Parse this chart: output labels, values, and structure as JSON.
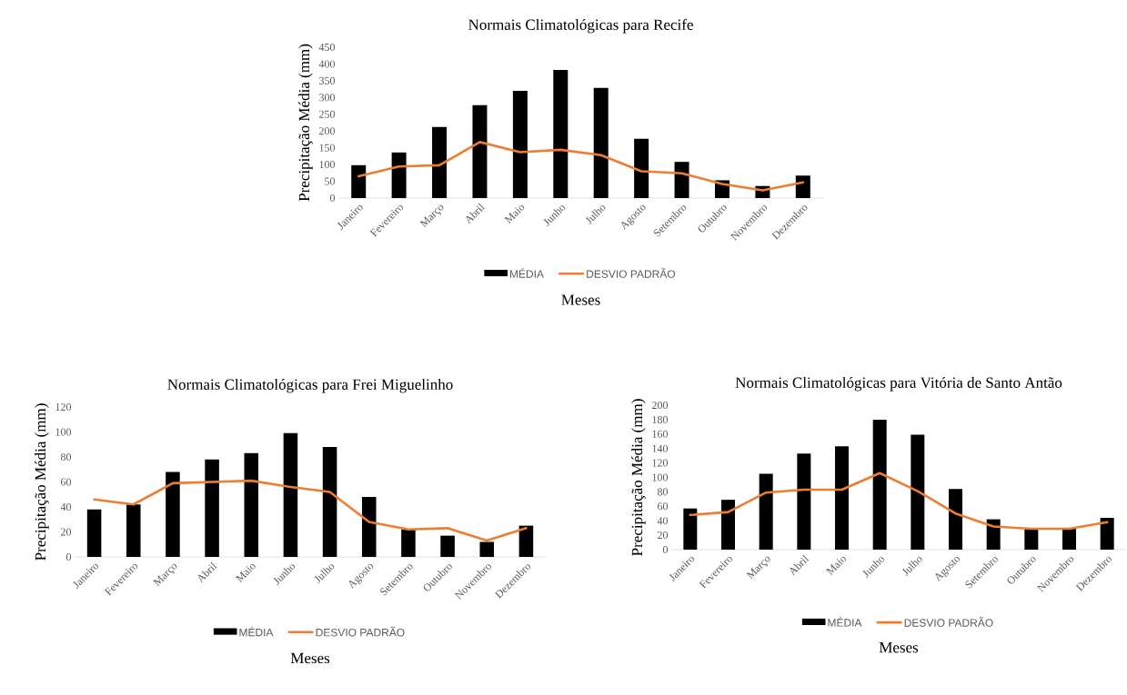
{
  "chart_data": [
    {
      "type": "bar",
      "title": "Normais Climatológicas  para Recife",
      "xlabel": "Meses",
      "ylabel": "Precipitação Média (mm)",
      "categories": [
        "Janeiro",
        "Fevereiro",
        "Março",
        "Abril",
        "Maio",
        "Junho",
        "Julho",
        "Agosto",
        "Setembro",
        "Outubro",
        "Novembro",
        "Dezembro"
      ],
      "series": [
        {
          "name": "MÉDIA",
          "color": "#000000",
          "values": [
            98,
            136,
            212,
            277,
            320,
            382,
            329,
            177,
            108,
            53,
            36,
            67
          ]
        },
        {
          "name": "DESVIO PADRÃO",
          "type": "line",
          "color": "#ed7d31",
          "values": [
            65,
            94,
            98,
            167,
            137,
            144,
            128,
            80,
            74,
            42,
            23,
            47
          ]
        }
      ],
      "ylim": [
        0,
        450
      ],
      "yticks": [
        0,
        50,
        100,
        150,
        200,
        250,
        300,
        350,
        400,
        450
      ],
      "legend": "bottom"
    },
    {
      "type": "bar",
      "title": "Normais Climatológicas  para Frei Miguelinho",
      "xlabel": "Meses",
      "ylabel": "Precipitação Média (mm)",
      "categories": [
        "Janeiro",
        "Fevereiro",
        "Março",
        "Abril",
        "Maio",
        "Junho",
        "Julho",
        "Agosto",
        "Setembro",
        "Outubro",
        "Novembro",
        "Dezembro"
      ],
      "series": [
        {
          "name": "MÉDIA",
          "color": "#000000",
          "values": [
            38,
            42,
            68,
            78,
            83,
            99,
            88,
            48,
            22,
            17,
            12,
            25
          ]
        },
        {
          "name": "DESVIO PADRÃO",
          "type": "line",
          "color": "#ed7d31",
          "values": [
            46,
            42,
            59,
            60,
            61,
            56,
            52,
            28,
            22,
            23,
            13,
            23
          ]
        }
      ],
      "ylim": [
        0,
        120
      ],
      "yticks": [
        0,
        20,
        40,
        60,
        80,
        100,
        120
      ],
      "legend": "bottom"
    },
    {
      "type": "bar",
      "title": "Normais Climatológicas  para Vitória de Santo Antão",
      "xlabel": "Meses",
      "ylabel": "Precipitação Média (mm)",
      "categories": [
        "Janeiro",
        "Fevereiro",
        "Março",
        "Abril",
        "Maio",
        "Junho",
        "Julho",
        "Agosto",
        "Setembro",
        "Outubro",
        "Novembro",
        "Dezembro"
      ],
      "series": [
        {
          "name": "MÉDIA",
          "color": "#000000",
          "values": [
            57,
            69,
            105,
            133,
            143,
            180,
            159,
            84,
            42,
            30,
            30,
            44
          ]
        },
        {
          "name": "DESVIO PADRÃO",
          "type": "line",
          "color": "#ed7d31",
          "values": [
            48,
            52,
            79,
            83,
            83,
            106,
            81,
            50,
            32,
            29,
            29,
            38
          ]
        }
      ],
      "ylim": [
        0,
        200
      ],
      "yticks": [
        0,
        20,
        40,
        60,
        80,
        100,
        120,
        140,
        160,
        180,
        200
      ],
      "legend": "bottom"
    }
  ]
}
